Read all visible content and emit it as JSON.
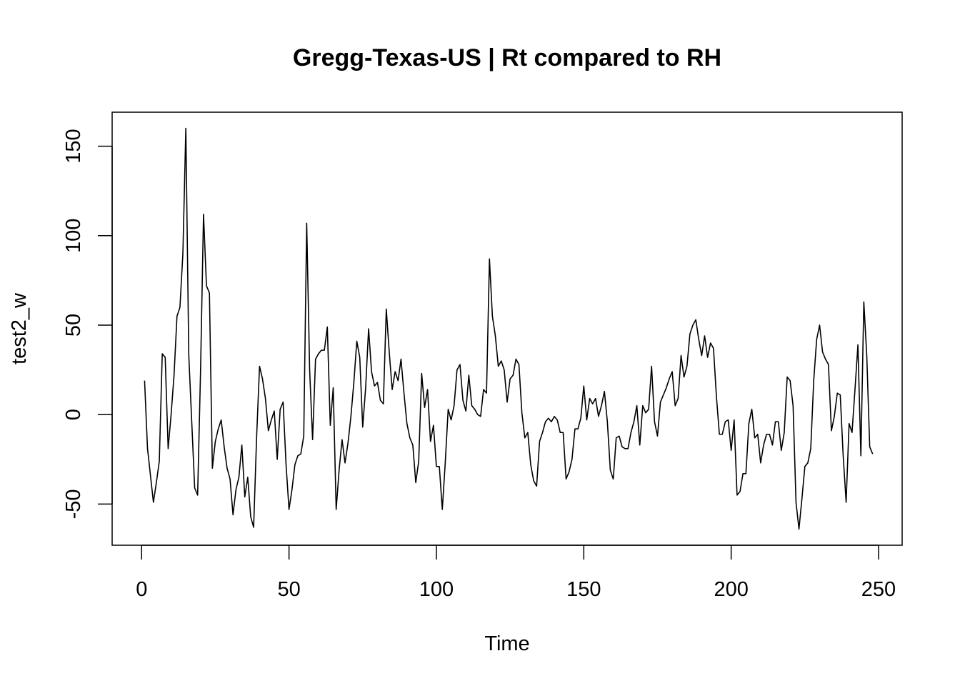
{
  "chart_data": {
    "type": "line",
    "title": "Gregg-Texas-US | Rt compared to RH",
    "xlabel": "Time",
    "ylabel": "test2_w",
    "xlim": [
      -10,
      258
    ],
    "ylim": [
      -73,
      169
    ],
    "x_ticks": [
      0,
      50,
      100,
      150,
      200,
      250
    ],
    "y_ticks": [
      -50,
      0,
      50,
      100,
      150
    ],
    "x_tick_labels": [
      "0",
      "50",
      "100",
      "150",
      "200",
      "250"
    ],
    "y_tick_labels": [
      "-50",
      "0",
      "50",
      "100",
      "150"
    ],
    "grid": false,
    "legend": "none",
    "box": true,
    "series_color": "#000000",
    "x": [
      1,
      2,
      4,
      5,
      6,
      7,
      8,
      9,
      10,
      11,
      12,
      13,
      14,
      15,
      16,
      17,
      18,
      19,
      20,
      21,
      22,
      23,
      24,
      25,
      26,
      27,
      28,
      29,
      30,
      31,
      32,
      33,
      34,
      35,
      36,
      37,
      38,
      39,
      40,
      41,
      42,
      43,
      44,
      45,
      46,
      47,
      48,
      49,
      50,
      51,
      52,
      53,
      54,
      55,
      56,
      57,
      58,
      59,
      60,
      61,
      62,
      63,
      64,
      65,
      66,
      67,
      68,
      69,
      70,
      71,
      72,
      73,
      74,
      75,
      76,
      77,
      78,
      79,
      80,
      81,
      82,
      83,
      84,
      85,
      86,
      87,
      88,
      89,
      90,
      91,
      92,
      93,
      94,
      95,
      96,
      97,
      98,
      99,
      100,
      101,
      102,
      103,
      104,
      105,
      106,
      107,
      108,
      109,
      110,
      111,
      112,
      113,
      114,
      115,
      116,
      117,
      118,
      119,
      120,
      121,
      122,
      123,
      124,
      125,
      126,
      127,
      128,
      129,
      130,
      131,
      132,
      133,
      134,
      135,
      136,
      137,
      138,
      139,
      140,
      141,
      142,
      143,
      144,
      145,
      146,
      147,
      148,
      149,
      150,
      151,
      152,
      153,
      154,
      155,
      156,
      157,
      158,
      159,
      160,
      161,
      162,
      163,
      164,
      165,
      166,
      167,
      168,
      169,
      170,
      171,
      172,
      173,
      174,
      175,
      176,
      177,
      178,
      179,
      180,
      181,
      182,
      183,
      184,
      185,
      186,
      187,
      188,
      189,
      190,
      191,
      192,
      193,
      194,
      195,
      196,
      197,
      198,
      199,
      200,
      201,
      202,
      203,
      204,
      205,
      206,
      207,
      208,
      209,
      210,
      211,
      212,
      213,
      214,
      215,
      216,
      217,
      218,
      219,
      220,
      221,
      222,
      223,
      224,
      225,
      226,
      227,
      228,
      229,
      230,
      231,
      232,
      233,
      234,
      235,
      236,
      237,
      238,
      239,
      240,
      241,
      242,
      243,
      244,
      245,
      246,
      247,
      248
    ],
    "y": [
      19,
      -19,
      -49,
      -38,
      -26,
      34,
      32,
      -19,
      0,
      22,
      55,
      60,
      90,
      160,
      33,
      -4,
      -41,
      -45,
      25,
      112,
      72,
      68,
      -30,
      -15,
      -8,
      -3,
      -18,
      -30,
      -36,
      -56,
      -42,
      -35,
      -17,
      -46,
      -35,
      -57,
      -63,
      -13,
      27,
      20,
      9,
      -9,
      -3,
      2,
      -25,
      3,
      7,
      -28,
      -53,
      -42,
      -28,
      -23,
      -22,
      -12,
      107,
      25,
      -14,
      31,
      34,
      36,
      36,
      49,
      -6,
      15,
      -53,
      -31,
      -14,
      -27,
      -16,
      -1,
      18,
      41,
      32,
      -7,
      15,
      48,
      24,
      16,
      18,
      8,
      6,
      59,
      35,
      14,
      24,
      19,
      31,
      12,
      -5,
      -13,
      -17,
      -38,
      -26,
      23,
      4,
      14,
      -15,
      -6,
      -29,
      -29,
      -53,
      -27,
      3,
      -3,
      5,
      25,
      28,
      8,
      2,
      22,
      5,
      3,
      0,
      -1,
      14,
      12,
      87,
      55,
      44,
      27,
      30,
      25,
      7,
      20,
      22,
      31,
      28,
      1,
      -13,
      -10,
      -28,
      -37,
      -40,
      -15,
      -10,
      -4,
      -2,
      -4,
      -1,
      -3,
      -10,
      -10,
      -36,
      -32,
      -25,
      -8,
      -8,
      -2,
      16,
      -3,
      9,
      6,
      9,
      -1,
      5,
      13,
      -4,
      -31,
      -36,
      -13,
      -12,
      -18,
      -19,
      -19,
      -10,
      -4,
      5,
      -17,
      5,
      1,
      3,
      27,
      -4,
      -12,
      7,
      11,
      15,
      20,
      24,
      5,
      9,
      33,
      21,
      27,
      45,
      50,
      53,
      42,
      33,
      44,
      32,
      40,
      37,
      10,
      -11,
      -11,
      -4,
      -3,
      -20,
      -3,
      -45,
      -43,
      -33,
      -33,
      -5,
      3,
      -13,
      -11,
      -27,
      -17,
      -11,
      -11,
      -17,
      -4,
      -4,
      -20,
      -10,
      21,
      19,
      5,
      -49,
      -64,
      -47,
      -29,
      -27,
      -19,
      19,
      42,
      50,
      35,
      31,
      28,
      -9,
      -1,
      12,
      11,
      -23,
      -49,
      -5,
      -10,
      14,
      39,
      -23,
      63,
      33,
      -18,
      -22
    ]
  }
}
